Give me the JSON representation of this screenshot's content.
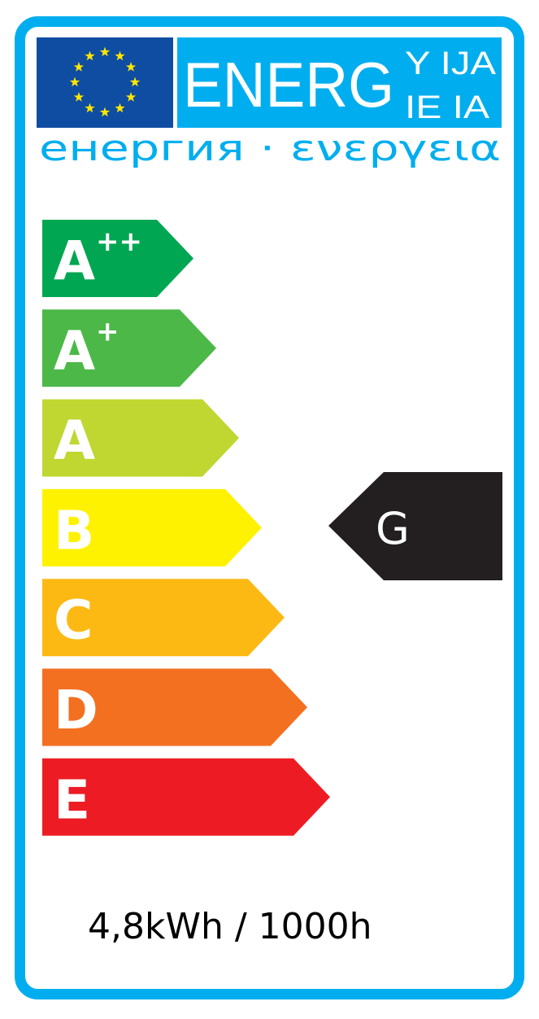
{
  "header": {
    "title_main": "ENERG",
    "title_suffix_top": "Y IJA",
    "title_suffix_bottom": "IE IA",
    "subtitle": "енергия · ενεργεια",
    "flag": "eu-flag"
  },
  "scale": [
    {
      "class": "A",
      "sup": "++",
      "color": "#00A651"
    },
    {
      "class": "A",
      "sup": "+",
      "color": "#4CB848"
    },
    {
      "class": "A",
      "sup": "",
      "color": "#BFD730"
    },
    {
      "class": "B",
      "sup": "",
      "color": "#FFF200"
    },
    {
      "class": "C",
      "sup": "",
      "color": "#FDB913"
    },
    {
      "class": "D",
      "sup": "",
      "color": "#F37021"
    },
    {
      "class": "E",
      "sup": "",
      "color": "#ED1C24"
    }
  ],
  "rating": {
    "class": "G",
    "color": "#231F20",
    "aligned_with_row": 3
  },
  "consumption": "4,8kWh / 1000h",
  "colors": {
    "frame": "#00AEEF",
    "flag_blue": "#0F4DA2",
    "star": "#FFE500"
  }
}
